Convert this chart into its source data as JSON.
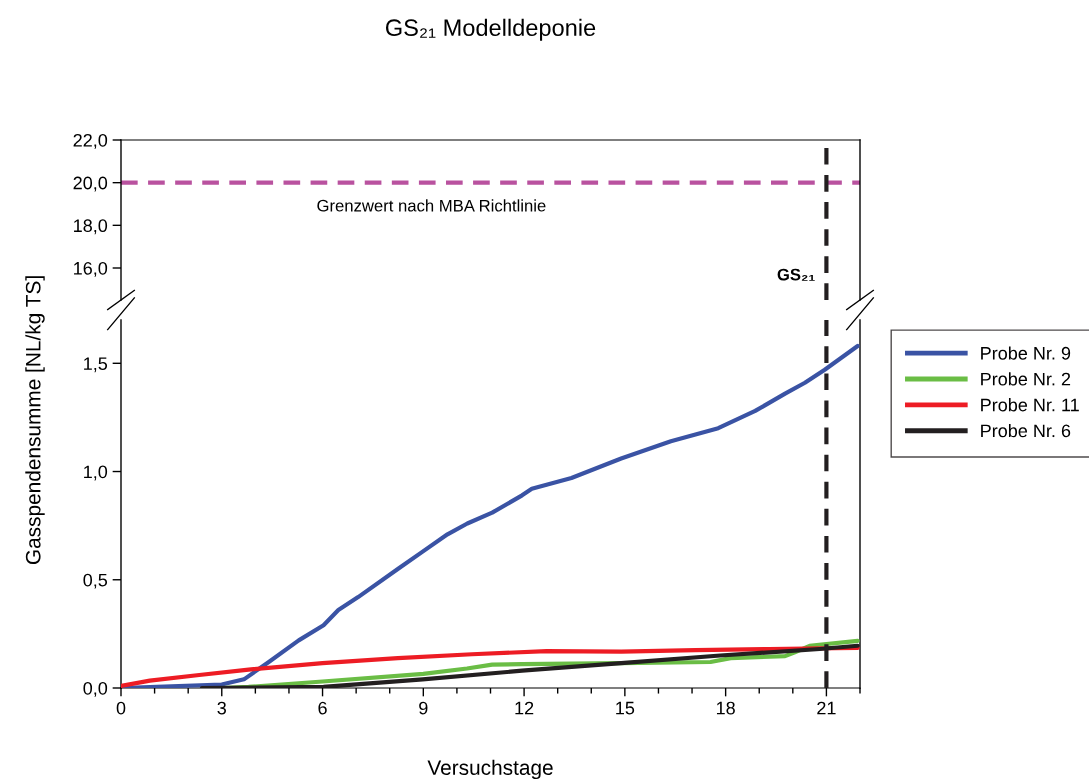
{
  "chart_data": [
    {
      "type": "line",
      "title": "GS₂₁ Modelldeponie",
      "xlim": [
        0,
        22
      ],
      "ylim": [
        14.5,
        22
      ],
      "yticks": [
        {
          "value": 16,
          "label": "16,0"
        },
        {
          "value": 18,
          "label": "18,0"
        },
        {
          "value": 20,
          "label": "20,0"
        },
        {
          "value": 22,
          "label": "22,0"
        }
      ],
      "tick_labels": "y",
      "ref_lines": [
        {
          "axis": "y",
          "value": 20,
          "label": "Grenzwert nach MBA Richtlinie",
          "color": "#b9529f",
          "line_style": "dashed"
        },
        {
          "axis": "x",
          "value": 21,
          "label": "GS₂₁",
          "color": "#231f20",
          "line_style": "dashed"
        }
      ]
    },
    {
      "type": "line",
      "xlabel": "Versuchstage",
      "ylabel": "Gasspendensumme [NL/kg TS]",
      "xlim": [
        0,
        22
      ],
      "ylim": [
        0,
        1.7
      ],
      "xticks": [
        0,
        {
          "value": 1,
          "label": null
        },
        {
          "value": 2,
          "label": null
        },
        3,
        {
          "value": 4,
          "label": null
        },
        {
          "value": 5,
          "label": null
        },
        6,
        {
          "value": 7,
          "label": null
        },
        {
          "value": 8,
          "label": null
        },
        9,
        {
          "value": 10,
          "label": null
        },
        {
          "value": 11,
          "label": null
        },
        12,
        {
          "value": 13,
          "label": null
        },
        {
          "value": 14,
          "label": null
        },
        15,
        {
          "value": 16,
          "label": null
        },
        {
          "value": 17,
          "label": null
        },
        18,
        {
          "value": 19,
          "label": null
        },
        {
          "value": 20,
          "label": null
        },
        21,
        {
          "value": 22,
          "label": null
        }
      ],
      "yticks": [
        {
          "value": 0,
          "label": "0,0"
        },
        {
          "value": 0.5,
          "label": "0,5"
        },
        {
          "value": 1.0,
          "label": "1,0"
        },
        {
          "value": 1.5,
          "label": "1,5"
        }
      ],
      "legend": "right",
      "grid": false,
      "line_style": "solid",
      "marker": "none",
      "ref_lines": [
        {
          "axis": "x",
          "value": 21,
          "color": "#231f20",
          "line_style": "dashed"
        }
      ],
      "series": [
        {
          "name": "Probe Nr. 9",
          "color": "#3a53a4",
          "x": [
            0,
            3,
            3.66,
            4.4,
            5.29,
            6.03,
            6.47,
            7.06,
            8.24,
            8.98,
            9.72,
            10.31,
            11.05,
            11.94,
            12.23,
            13.41,
            14.89,
            16.37,
            17.78,
            18.88,
            19.77,
            20.36,
            20.95,
            21.93
          ],
          "values": [
            0,
            0.016,
            0.04,
            0.12,
            0.22,
            0.29,
            0.36,
            0.42,
            0.55,
            0.63,
            0.71,
            0.76,
            0.81,
            0.89,
            0.92,
            0.97,
            1.06,
            1.14,
            1.2,
            1.28,
            1.36,
            1.41,
            1.47,
            1.58
          ]
        },
        {
          "name": "Probe Nr. 2",
          "color": "#6abd45",
          "x": [
            3.0,
            3.8,
            6.0,
            9.0,
            10.3,
            11.05,
            11.94,
            14.89,
            17.55,
            18.15,
            19.77,
            20.06,
            20.5,
            21.93
          ],
          "values": [
            0,
            0.005,
            0.03,
            0.065,
            0.09,
            0.108,
            0.11,
            0.115,
            0.12,
            0.138,
            0.147,
            0.165,
            0.195,
            0.218
          ]
        },
        {
          "name": "Probe Nr. 11",
          "color": "#ed1c24",
          "x": [
            0,
            0.86,
            2.33,
            3.8,
            6.0,
            8.24,
            10.45,
            12.67,
            14.89,
            17.1,
            19.3,
            21.93
          ],
          "values": [
            0.01,
            0.034,
            0.06,
            0.085,
            0.115,
            0.138,
            0.156,
            0.17,
            0.168,
            0.175,
            0.18,
            0.185
          ]
        },
        {
          "name": "Probe Nr. 6",
          "color": "#231f20",
          "x": [
            2.41,
            6.03,
            8.98,
            11.94,
            14.89,
            17.84,
            20.8,
            21.93
          ],
          "values": [
            0,
            0.005,
            0.04,
            0.08,
            0.115,
            0.15,
            0.18,
            0.195
          ]
        }
      ]
    }
  ]
}
